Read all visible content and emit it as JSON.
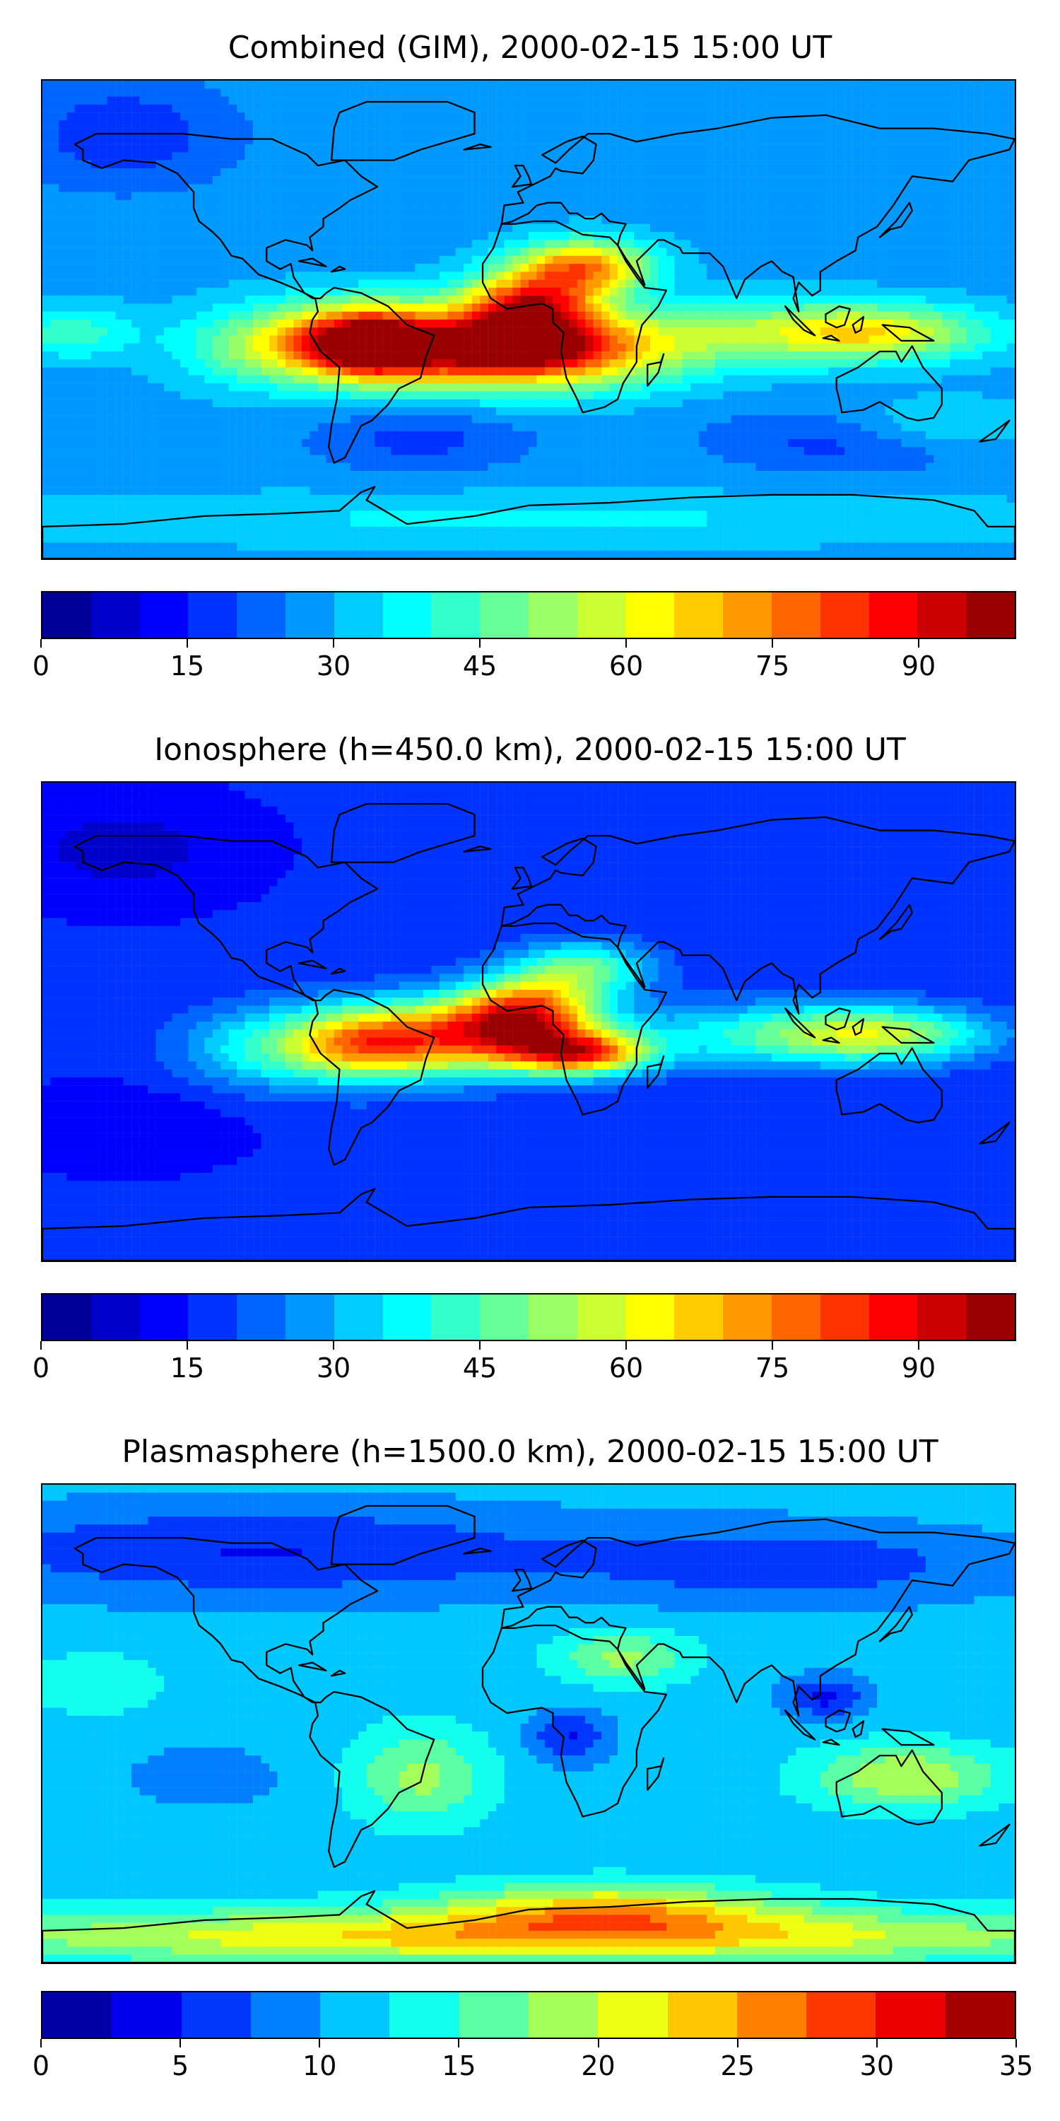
{
  "panels": [
    {
      "title": "Combined (GIM), 2000-02-15 15:00 UT",
      "colorbar": {
        "min": 0,
        "max": 100,
        "levels": 20,
        "ticks": [
          "0",
          "15",
          "30",
          "45",
          "60",
          "75",
          "90"
        ],
        "tick_values": [
          0,
          15,
          30,
          45,
          60,
          75,
          90
        ]
      },
      "field": {
        "background": 0.28,
        "blobs": [
          [
            -60,
            -8,
            30,
            14,
            0.62
          ],
          [
            -5,
            -12,
            55,
            14,
            0.62
          ],
          [
            0,
            5,
            25,
            12,
            0.55
          ],
          [
            20,
            20,
            25,
            10,
            0.45
          ],
          [
            -60,
            -10,
            12,
            8,
            0.22
          ],
          [
            -5,
            -10,
            25,
            8,
            0.25
          ],
          [
            130,
            -5,
            40,
            10,
            0.25
          ],
          [
            90,
            -5,
            60,
            12,
            0.2
          ],
          [
            -170,
            -5,
            25,
            10,
            0.15
          ],
          [
            -100,
            -10,
            30,
            15,
            0.2
          ],
          [
            150,
            -40,
            40,
            10,
            0.12
          ],
          [
            -150,
            70,
            40,
            20,
            -0.12
          ],
          [
            -40,
            -45,
            40,
            12,
            -0.1
          ],
          [
            120,
            -45,
            50,
            12,
            -0.12
          ],
          [
            0,
            -75,
            200,
            10,
            0.08
          ]
        ]
      }
    },
    {
      "title": "Ionosphere  (h=450.0 km), 2000-02-15 15:00 UT",
      "colorbar": {
        "min": 0,
        "max": 100,
        "levels": 20,
        "ticks": [
          "0",
          "15",
          "30",
          "45",
          "60",
          "75",
          "90"
        ],
        "tick_values": [
          0,
          15,
          30,
          45,
          60,
          75,
          90
        ]
      },
      "field": {
        "background": 0.16,
        "blobs": [
          [
            -60,
            -8,
            30,
            14,
            0.55
          ],
          [
            -15,
            -5,
            35,
            14,
            0.55
          ],
          [
            20,
            -12,
            25,
            8,
            0.55
          ],
          [
            0,
            5,
            25,
            12,
            0.45
          ],
          [
            20,
            20,
            25,
            10,
            0.3
          ],
          [
            130,
            -5,
            40,
            10,
            0.3
          ],
          [
            90,
            -5,
            60,
            12,
            0.22
          ],
          [
            -100,
            -10,
            30,
            15,
            0.2
          ],
          [
            -150,
            65,
            45,
            20,
            -0.08
          ],
          [
            -150,
            -40,
            40,
            15,
            -0.06
          ]
        ]
      }
    },
    {
      "title": "Plasmasphere (h=1500.0 km), 2000-02-15 15:00 UT",
      "colorbar": {
        "min": 0,
        "max": 35,
        "levels": 14,
        "ticks": [
          "0",
          "5",
          "10",
          "15",
          "20",
          "25",
          "30",
          "35"
        ],
        "tick_values": [
          0,
          5,
          10,
          15,
          20,
          25,
          30,
          35
        ]
      },
      "field": {
        "background": 0.32,
        "blobs": [
          [
            0,
            -80,
            220,
            10,
            0.35
          ],
          [
            30,
            -70,
            60,
            10,
            0.3
          ],
          [
            -40,
            -20,
            25,
            18,
            0.2
          ],
          [
            35,
            25,
            25,
            10,
            0.2
          ],
          [
            140,
            -20,
            35,
            12,
            0.25
          ],
          [
            -160,
            15,
            25,
            12,
            0.1
          ],
          [
            -100,
            65,
            120,
            18,
            -0.18
          ],
          [
            100,
            60,
            80,
            15,
            -0.15
          ],
          [
            15,
            -5,
            15,
            10,
            -0.18
          ],
          [
            110,
            10,
            15,
            8,
            -0.2
          ],
          [
            -120,
            -20,
            30,
            12,
            -0.08
          ]
        ]
      }
    }
  ],
  "colormap": "jet",
  "coastline_color": "#000000"
}
